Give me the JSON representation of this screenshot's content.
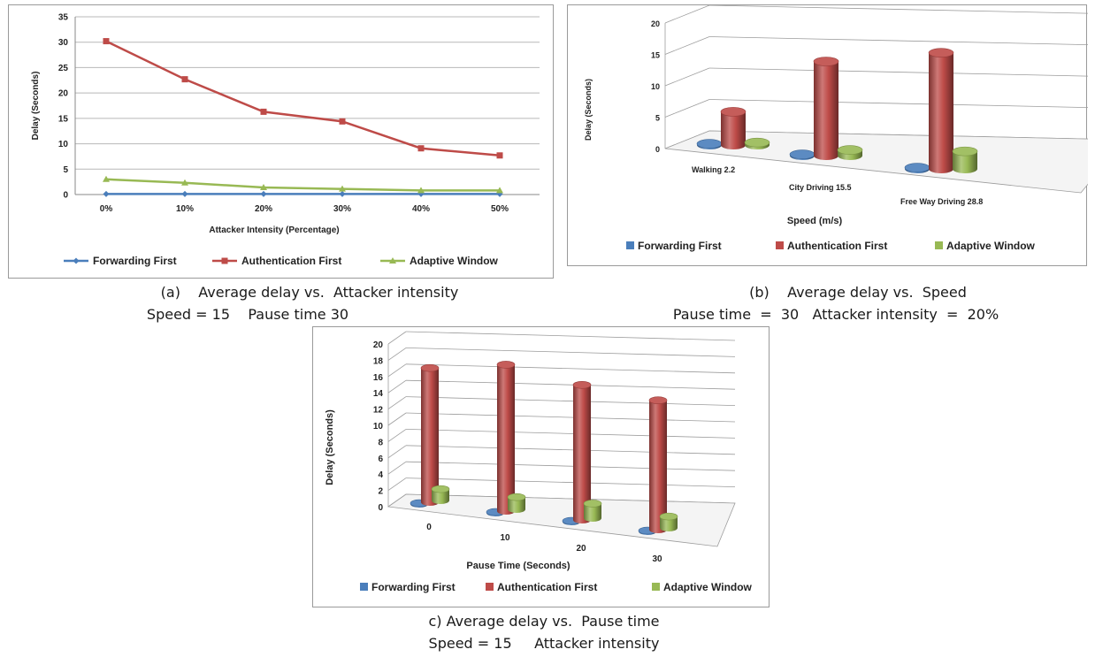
{
  "colors": {
    "forwarding": "#4a7ebb",
    "authentication": "#be4b48",
    "adaptive": "#98b954"
  },
  "chart_data": [
    {
      "type": "line",
      "categories": [
        "0%",
        "10%",
        "20%",
        "30%",
        "40%",
        "50%"
      ],
      "series": [
        {
          "name": "Forwarding First",
          "values": [
            0.1,
            0.1,
            0.1,
            0.1,
            0.1,
            0.1
          ]
        },
        {
          "name": "Authentication First",
          "values": [
            30.2,
            22.7,
            16.3,
            14.4,
            9.1,
            7.7
          ]
        },
        {
          "name": "Adaptive Window",
          "values": [
            3.0,
            2.3,
            1.4,
            1.1,
            0.8,
            0.8
          ]
        }
      ],
      "xlabel": "Attacker Intensity (Percentage)",
      "ylabel": "Delay (Seconds)",
      "ylim": [
        0,
        35
      ],
      "yticks": [
        0,
        5,
        10,
        15,
        20,
        25,
        30,
        35
      ],
      "grid": true,
      "legend": "bottom",
      "caption_line1": "(a)    Average delay vs.  Attacker intensity",
      "caption_line2": "Speed = 15    Pause time 30"
    },
    {
      "type": "bar",
      "style": "3d-cylinder",
      "categories": [
        "Walking  2.2",
        "City Driving  15.5",
        "Free Way Driving  28.8"
      ],
      "series": [
        {
          "name": "Forwarding First",
          "values": [
            0.2,
            0.2,
            0.2
          ]
        },
        {
          "name": "Authentication First",
          "values": [
            5.3,
            15.0,
            18.5
          ]
        },
        {
          "name": "Adaptive Window",
          "values": [
            0.4,
            0.9,
            2.8
          ]
        }
      ],
      "xlabel": "Speed (m/s)",
      "ylabel": "Delay (Seconds)",
      "ylim": [
        0,
        20
      ],
      "yticks": [
        0,
        5,
        10,
        15,
        20
      ],
      "grid": true,
      "legend": "bottom",
      "caption_line1": "(b)    Average delay vs.  Speed",
      "caption_line2": "Pause time  =  30   Attacker intensity  =  20%"
    },
    {
      "type": "bar",
      "style": "3d-cylinder",
      "categories": [
        "0",
        "10",
        "20",
        "30"
      ],
      "series": [
        {
          "name": "Forwarding First",
          "values": [
            0.1,
            0.1,
            0.1,
            0.1
          ]
        },
        {
          "name": "Authentication First",
          "values": [
            16.5,
            18.0,
            16.6,
            15.9
          ]
        },
        {
          "name": "Adaptive Window",
          "values": [
            1.4,
            1.5,
            1.8,
            1.4
          ]
        }
      ],
      "xlabel": "Pause Time (Seconds)",
      "ylabel": "Delay (Seconds)",
      "ylim": [
        0,
        20
      ],
      "yticks": [
        0,
        2,
        4,
        6,
        8,
        10,
        12,
        14,
        16,
        18,
        20
      ],
      "grid": true,
      "legend": "bottom",
      "caption_line1": "c) Average delay vs.  Pause time",
      "caption_line2": "Speed = 15     Attacker intensity"
    }
  ]
}
